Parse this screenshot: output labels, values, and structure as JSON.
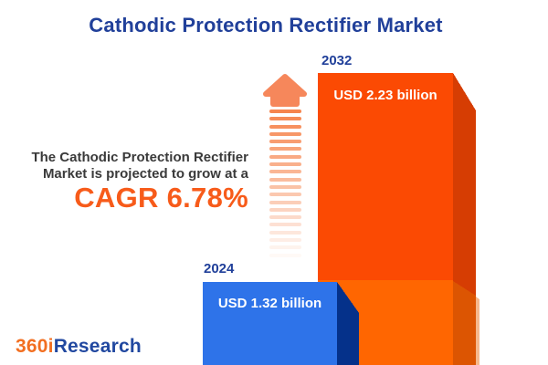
{
  "title": "Cathodic Protection Rectifier Market",
  "description": {
    "line1": "The Cathodic Protection Rectifier",
    "line2": "Market is projected to grow at a",
    "cagr_text": "CAGR 6.78%"
  },
  "logo": {
    "prefix": "360i",
    "suffix": "Research"
  },
  "chart_data": {
    "type": "bar",
    "title": "Cathodic Protection Rectifier Market",
    "categories": [
      "2024",
      "2032"
    ],
    "values": [
      1.32,
      2.23
    ],
    "unit": "USD billion",
    "value_labels": [
      "USD 1.32 billion",
      "USD 2.23 billion"
    ],
    "cagr_percent": 6.78,
    "annotation": "The Cathodic Protection Rectifier Market is projected to grow at a CAGR 6.78%",
    "legend": "none",
    "grid": false,
    "style": "3d-extruded-bars-with-growth-arrow"
  },
  "colors": {
    "title_blue": "#21409a",
    "text_dark": "#3a3a3a",
    "accent_orange": "#f75b1a",
    "arrow": "#f6854e",
    "arrow_head": "#f6875b",
    "bar_2024_front": "#2e73e9",
    "bar_2024_side": "#05318a",
    "bar_2032_front_top": "#fb4a03",
    "bar_2032_front_bottom": "#ff6601",
    "bar_2032_side_top": "#d63d03",
    "bar_2032_side_bottom": "#dc5502",
    "bar_2032_edge_highlight": "#f5b88c",
    "value_text": "#ffffff",
    "logo_orange": "#f26f21",
    "logo_blue": "#2148a0"
  }
}
